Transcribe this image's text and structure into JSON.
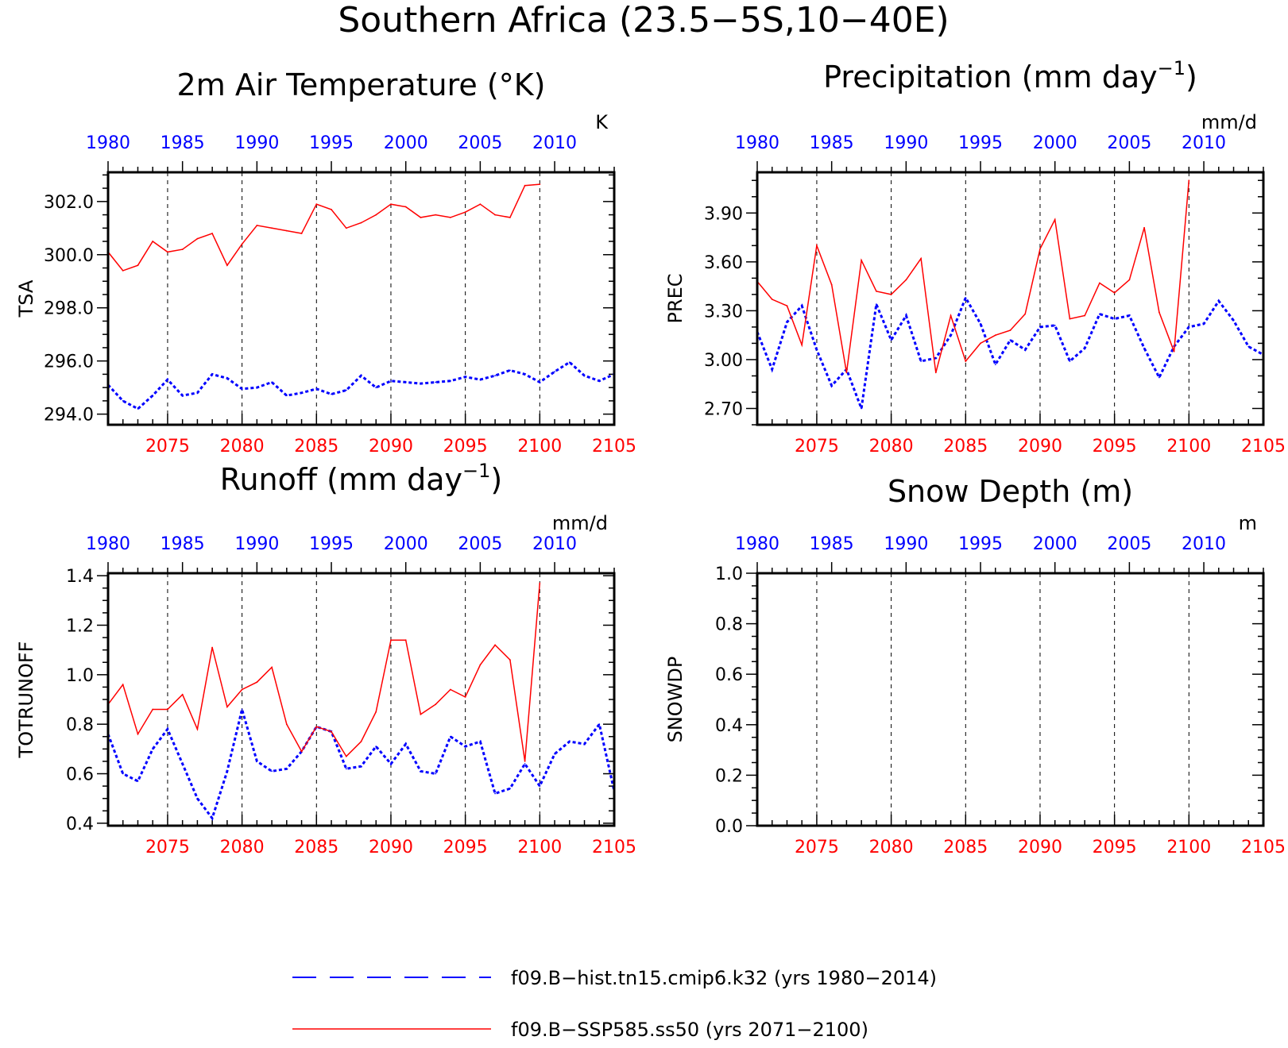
{
  "figure": {
    "title": "Southern Africa (23.5−5S,10−40E)",
    "colors": {
      "hist": "#0000ff",
      "ssp": "#ff0000",
      "frame": "#000000",
      "grid": "#000000"
    }
  },
  "chart_data": [
    {
      "id": "tsa",
      "type": "line",
      "title": "2m Air Temperature (°K)",
      "ylabel": "TSA",
      "units": "K",
      "ylim": [
        293.6,
        303.1
      ],
      "yticks": [
        294.0,
        296.0,
        298.0,
        300.0,
        302.0
      ],
      "ytick_labels": [
        "294.0",
        "296.0",
        "298.0",
        "300.0",
        "302.0"
      ],
      "ytick_minor_step": 0.5,
      "top_xlim": [
        1980,
        2014
      ],
      "top_xticks": [
        1980,
        1985,
        1990,
        1995,
        2000,
        2005,
        2010
      ],
      "bottom_xlim": [
        2071,
        2105
      ],
      "bottom_xticks": [
        2075,
        2080,
        2085,
        2090,
        2095,
        2100,
        2105
      ],
      "grid": "vertical dashed at bottom major ticks",
      "series": [
        {
          "name": "f09.B−hist.tn15.cmip6.k32 (yrs 1980−2014)",
          "axis": "top",
          "style": "dashed",
          "x": [
            1980,
            1981,
            1982,
            1983,
            1984,
            1985,
            1986,
            1987,
            1988,
            1989,
            1990,
            1991,
            1992,
            1993,
            1994,
            1995,
            1996,
            1997,
            1998,
            1999,
            2000,
            2001,
            2002,
            2003,
            2004,
            2005,
            2006,
            2007,
            2008,
            2009,
            2010,
            2011,
            2012,
            2013,
            2014
          ],
          "y": [
            295.1,
            294.5,
            294.2,
            294.7,
            295.3,
            294.7,
            294.8,
            295.5,
            295.35,
            294.95,
            295.0,
            295.2,
            294.7,
            294.8,
            294.95,
            294.75,
            294.9,
            295.45,
            295.0,
            295.25,
            295.2,
            295.15,
            295.2,
            295.25,
            295.4,
            295.3,
            295.45,
            295.65,
            295.5,
            295.2,
            295.6,
            295.95,
            295.45,
            295.25,
            295.5
          ]
        },
        {
          "name": "f09.B−SSP585.ss50 (yrs 2071−2100)",
          "axis": "bottom",
          "style": "solid",
          "x": [
            2071,
            2072,
            2073,
            2074,
            2075,
            2076,
            2077,
            2078,
            2079,
            2080,
            2081,
            2082,
            2083,
            2084,
            2085,
            2086,
            2087,
            2088,
            2089,
            2090,
            2091,
            2092,
            2093,
            2094,
            2095,
            2096,
            2097,
            2098,
            2099,
            2100
          ],
          "y": [
            300.1,
            299.4,
            299.6,
            300.5,
            300.1,
            300.2,
            300.6,
            300.8,
            299.6,
            300.4,
            301.1,
            301.0,
            300.9,
            300.8,
            301.9,
            301.7,
            301.0,
            301.2,
            301.5,
            301.9,
            301.8,
            301.4,
            301.5,
            301.4,
            301.6,
            301.9,
            301.5,
            301.4,
            302.6,
            302.65
          ]
        }
      ]
    },
    {
      "id": "prec",
      "type": "line",
      "title": "Precipitation (mm day",
      "title_sup": "−1",
      "title_end": ")",
      "ylabel": "PREC",
      "units": "mm/d",
      "ylim": [
        2.6,
        4.15
      ],
      "yticks": [
        2.7,
        3.0,
        3.3,
        3.6,
        3.9
      ],
      "ytick_labels": [
        "2.70",
        "3.00",
        "3.30",
        "3.60",
        "3.90"
      ],
      "ytick_minor_step": 0.1,
      "top_xlim": [
        1980,
        2014
      ],
      "top_xticks": [
        1980,
        1985,
        1990,
        1995,
        2000,
        2005,
        2010
      ],
      "bottom_xlim": [
        2071,
        2105
      ],
      "bottom_xticks": [
        2075,
        2080,
        2085,
        2090,
        2095,
        2100,
        2105
      ],
      "grid": "vertical dashed at bottom major ticks",
      "series": [
        {
          "name": "f09.B−hist.tn15.cmip6.k32 (yrs 1980−2014)",
          "axis": "top",
          "style": "dashed",
          "x": [
            1980,
            1981,
            1982,
            1983,
            1984,
            1985,
            1986,
            1987,
            1988,
            1989,
            1990,
            1991,
            1992,
            1993,
            1994,
            1995,
            1996,
            1997,
            1998,
            1999,
            2000,
            2001,
            2002,
            2003,
            2004,
            2005,
            2006,
            2007,
            2008,
            2009,
            2010,
            2011,
            2012,
            2013,
            2014
          ],
          "y": [
            3.17,
            2.94,
            3.23,
            3.33,
            3.06,
            2.84,
            2.94,
            2.7,
            3.34,
            3.12,
            3.27,
            2.99,
            3.01,
            3.15,
            3.38,
            3.22,
            2.97,
            3.12,
            3.06,
            3.2,
            3.21,
            2.99,
            3.07,
            3.28,
            3.25,
            3.27,
            3.07,
            2.89,
            3.08,
            3.2,
            3.22,
            3.36,
            3.24,
            3.08,
            3.03
          ]
        },
        {
          "name": "f09.B−SSP585.ss50 (yrs 2071−2100)",
          "axis": "bottom",
          "style": "solid",
          "x": [
            2071,
            2072,
            2073,
            2074,
            2075,
            2076,
            2077,
            2078,
            2079,
            2080,
            2081,
            2082,
            2083,
            2084,
            2085,
            2086,
            2087,
            2088,
            2089,
            2090,
            2091,
            2092,
            2093,
            2094,
            2095,
            2096,
            2097,
            2098,
            2099,
            2100
          ],
          "y": [
            3.48,
            3.37,
            3.33,
            3.09,
            3.7,
            3.46,
            2.92,
            3.61,
            3.42,
            3.4,
            3.49,
            3.62,
            2.92,
            3.27,
            2.99,
            3.1,
            3.15,
            3.18,
            3.28,
            3.68,
            3.86,
            3.25,
            3.27,
            3.47,
            3.41,
            3.49,
            3.81,
            3.29,
            3.05,
            4.1
          ]
        }
      ]
    },
    {
      "id": "runoff",
      "type": "line",
      "title": "Runoff (mm day",
      "title_sup": "−1",
      "title_end": ")",
      "ylabel": "TOTRUNOFF",
      "units": "mm/d",
      "ylim": [
        0.39,
        1.41
      ],
      "yticks": [
        0.4,
        0.6,
        0.8,
        1.0,
        1.2,
        1.4
      ],
      "ytick_labels": [
        "0.4",
        "0.6",
        "0.8",
        "1.0",
        "1.2",
        "1.4"
      ],
      "ytick_minor_step": 0.05,
      "top_xlim": [
        1980,
        2014
      ],
      "top_xticks": [
        1980,
        1985,
        1990,
        1995,
        2000,
        2005,
        2010
      ],
      "bottom_xlim": [
        2071,
        2105
      ],
      "bottom_xticks": [
        2075,
        2080,
        2085,
        2090,
        2095,
        2100,
        2105
      ],
      "grid": "vertical dashed at bottom major ticks",
      "series": [
        {
          "name": "f09.B−hist.tn15.cmip6.k32 (yrs 1980−2014)",
          "axis": "top",
          "style": "dashed",
          "x": [
            1980,
            1981,
            1982,
            1983,
            1984,
            1985,
            1986,
            1987,
            1988,
            1989,
            1990,
            1991,
            1992,
            1993,
            1994,
            1995,
            1996,
            1997,
            1998,
            1999,
            2000,
            2001,
            2002,
            2003,
            2004,
            2005,
            2006,
            2007,
            2008,
            2009,
            2010,
            2011,
            2012,
            2013,
            2014
          ],
          "y": [
            0.76,
            0.6,
            0.57,
            0.7,
            0.78,
            0.64,
            0.5,
            0.42,
            0.61,
            0.86,
            0.65,
            0.61,
            0.62,
            0.69,
            0.79,
            0.77,
            0.62,
            0.63,
            0.71,
            0.64,
            0.72,
            0.61,
            0.6,
            0.75,
            0.71,
            0.73,
            0.52,
            0.54,
            0.64,
            0.55,
            0.68,
            0.73,
            0.72,
            0.8,
            0.53
          ]
        },
        {
          "name": "f09.B−SSP585.ss50 (yrs 2071−2100)",
          "axis": "bottom",
          "style": "solid",
          "x": [
            2071,
            2072,
            2073,
            2074,
            2075,
            2076,
            2077,
            2078,
            2079,
            2080,
            2081,
            2082,
            2083,
            2084,
            2085,
            2086,
            2087,
            2088,
            2089,
            2090,
            2091,
            2092,
            2093,
            2094,
            2095,
            2096,
            2097,
            2098,
            2099,
            2100
          ],
          "y": [
            0.88,
            0.96,
            0.76,
            0.86,
            0.86,
            0.92,
            0.78,
            1.11,
            0.87,
            0.94,
            0.97,
            1.03,
            0.8,
            0.69,
            0.79,
            0.77,
            0.67,
            0.73,
            0.85,
            1.14,
            1.14,
            0.84,
            0.88,
            0.94,
            0.91,
            1.04,
            1.12,
            1.06,
            0.65,
            1.37
          ]
        }
      ]
    },
    {
      "id": "snowdp",
      "type": "line",
      "title": "Snow Depth (m)",
      "ylabel": "SNOWDP",
      "units": "m",
      "ylim": [
        0.0,
        1.0
      ],
      "yticks": [
        0.0,
        0.2,
        0.4,
        0.6,
        0.8,
        1.0
      ],
      "ytick_labels": [
        "0.0",
        "0.2",
        "0.4",
        "0.6",
        "0.8",
        "1.0"
      ],
      "ytick_minor_step": 0.05,
      "top_xlim": [
        1980,
        2014
      ],
      "top_xticks": [
        1980,
        1985,
        1990,
        1995,
        2000,
        2005,
        2010
      ],
      "bottom_xlim": [
        2071,
        2105
      ],
      "bottom_xticks": [
        2075,
        2080,
        2085,
        2090,
        2095,
        2100,
        2105
      ],
      "grid": "vertical dashed at bottom major ticks",
      "series": []
    }
  ],
  "legend": {
    "placement": "bottom-center",
    "items": [
      {
        "label": "f09.B−hist.tn15.cmip6.k32 (yrs 1980−2014)",
        "style": "dashed",
        "color": "#0000ff"
      },
      {
        "label": "f09.B−SSP585.ss50 (yrs 2071−2100)",
        "style": "solid",
        "color": "#ff0000"
      }
    ]
  }
}
